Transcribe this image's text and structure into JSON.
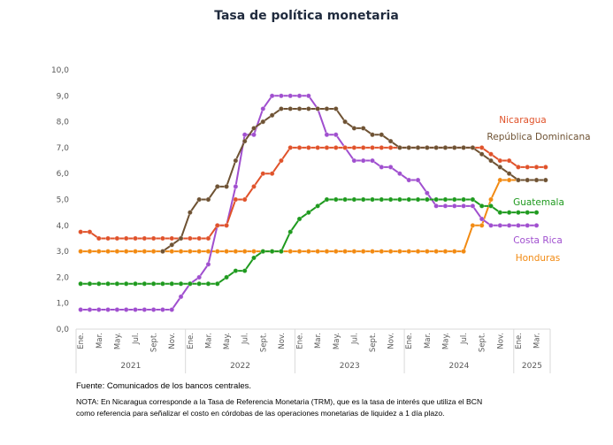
{
  "chart_data": {
    "type": "line",
    "title": "Tasa de política monetaria",
    "xlabel": "",
    "ylabel": "",
    "ylim": [
      0,
      10
    ],
    "yticks": [
      "0,0",
      "1,0",
      "2,0",
      "3,0",
      "4,0",
      "5,0",
      "6,0",
      "7,0",
      "8,0",
      "9,0",
      "10,0"
    ],
    "grid": false,
    "legend": "inline-right",
    "years": [
      {
        "label": "2021",
        "months": 12
      },
      {
        "label": "2022",
        "months": 12
      },
      {
        "label": "2023",
        "months": 12
      },
      {
        "label": "2024",
        "months": 12
      },
      {
        "label": "2025",
        "months": 4
      }
    ],
    "month_labels": [
      "Ene.",
      "",
      "Mar.",
      "",
      "May.",
      "",
      "Jul.",
      "",
      "Sept.",
      "",
      "Nov.",
      ""
    ],
    "series": [
      {
        "name": "Nicaragua",
        "color": "#E0522A",
        "values": [
          3.75,
          3.75,
          3.5,
          3.5,
          3.5,
          3.5,
          3.5,
          3.5,
          3.5,
          3.5,
          3.5,
          3.5,
          3.5,
          3.5,
          3.5,
          4.0,
          4.0,
          5.0,
          5.0,
          5.5,
          6.0,
          6.0,
          6.5,
          7.0,
          7.0,
          7.0,
          7.0,
          7.0,
          7.0,
          7.0,
          7.0,
          7.0,
          7.0,
          7.0,
          7.0,
          7.0,
          7.0,
          7.0,
          7.0,
          7.0,
          7.0,
          7.0,
          7.0,
          7.0,
          7.0,
          6.75,
          6.5,
          6.5,
          6.25,
          6.25,
          6.25,
          6.25
        ]
      },
      {
        "name": "República Dominicana",
        "color": "#6E5233",
        "values": [
          null,
          null,
          null,
          null,
          null,
          null,
          null,
          null,
          null,
          3.0,
          3.25,
          3.5,
          4.5,
          5.0,
          5.0,
          5.5,
          5.5,
          6.5,
          7.25,
          7.75,
          8.0,
          8.25,
          8.5,
          8.5,
          8.5,
          8.5,
          8.5,
          8.5,
          8.5,
          8.0,
          7.75,
          7.75,
          7.5,
          7.5,
          7.25,
          7.0,
          7.0,
          7.0,
          7.0,
          7.0,
          7.0,
          7.0,
          7.0,
          7.0,
          6.75,
          6.5,
          6.25,
          6.0,
          5.75,
          5.75,
          5.75,
          5.75
        ]
      },
      {
        "name": "Guatemala",
        "color": "#1E9A1E",
        "values": [
          1.75,
          1.75,
          1.75,
          1.75,
          1.75,
          1.75,
          1.75,
          1.75,
          1.75,
          1.75,
          1.75,
          1.75,
          1.75,
          1.75,
          1.75,
          1.75,
          2.0,
          2.25,
          2.25,
          2.75,
          3.0,
          3.0,
          3.0,
          3.75,
          4.25,
          4.5,
          4.75,
          5.0,
          5.0,
          5.0,
          5.0,
          5.0,
          5.0,
          5.0,
          5.0,
          5.0,
          5.0,
          5.0,
          5.0,
          5.0,
          5.0,
          5.0,
          5.0,
          5.0,
          4.75,
          4.75,
          4.5,
          4.5,
          4.5,
          4.5,
          4.5,
          null
        ]
      },
      {
        "name": "Costa Rica",
        "color": "#A04FCF",
        "values": [
          0.75,
          0.75,
          0.75,
          0.75,
          0.75,
          0.75,
          0.75,
          0.75,
          0.75,
          0.75,
          0.75,
          1.25,
          1.75,
          2.0,
          2.5,
          4.0,
          4.0,
          5.5,
          7.5,
          7.5,
          8.5,
          9.0,
          9.0,
          9.0,
          9.0,
          9.0,
          8.5,
          7.5,
          7.5,
          7.0,
          6.5,
          6.5,
          6.5,
          6.25,
          6.25,
          6.0,
          5.75,
          5.75,
          5.25,
          4.75,
          4.75,
          4.75,
          4.75,
          4.75,
          4.25,
          4.0,
          4.0,
          4.0,
          4.0,
          4.0,
          4.0,
          null
        ]
      },
      {
        "name": "Honduras",
        "color": "#F28A12",
        "values": [
          3.0,
          3.0,
          3.0,
          3.0,
          3.0,
          3.0,
          3.0,
          3.0,
          3.0,
          3.0,
          3.0,
          3.0,
          3.0,
          3.0,
          3.0,
          3.0,
          3.0,
          3.0,
          3.0,
          3.0,
          3.0,
          3.0,
          3.0,
          3.0,
          3.0,
          3.0,
          3.0,
          3.0,
          3.0,
          3.0,
          3.0,
          3.0,
          3.0,
          3.0,
          3.0,
          3.0,
          3.0,
          3.0,
          3.0,
          3.0,
          3.0,
          3.0,
          3.0,
          4.0,
          4.0,
          5.0,
          5.75,
          5.75,
          5.75,
          5.75,
          5.75,
          null
        ]
      }
    ]
  },
  "footer": {
    "source": "Fuente: Comunicados de los bancos centrales.",
    "note": "NOTA: En Nicaragua corresponde a la Tasa de Referencia Monetaria (TRM), que es la tasa de interés que utiliza el BCN como referencia para señalizar el costo en córdobas de las operaciones monetarias de liquidez a 1 día plazo."
  }
}
